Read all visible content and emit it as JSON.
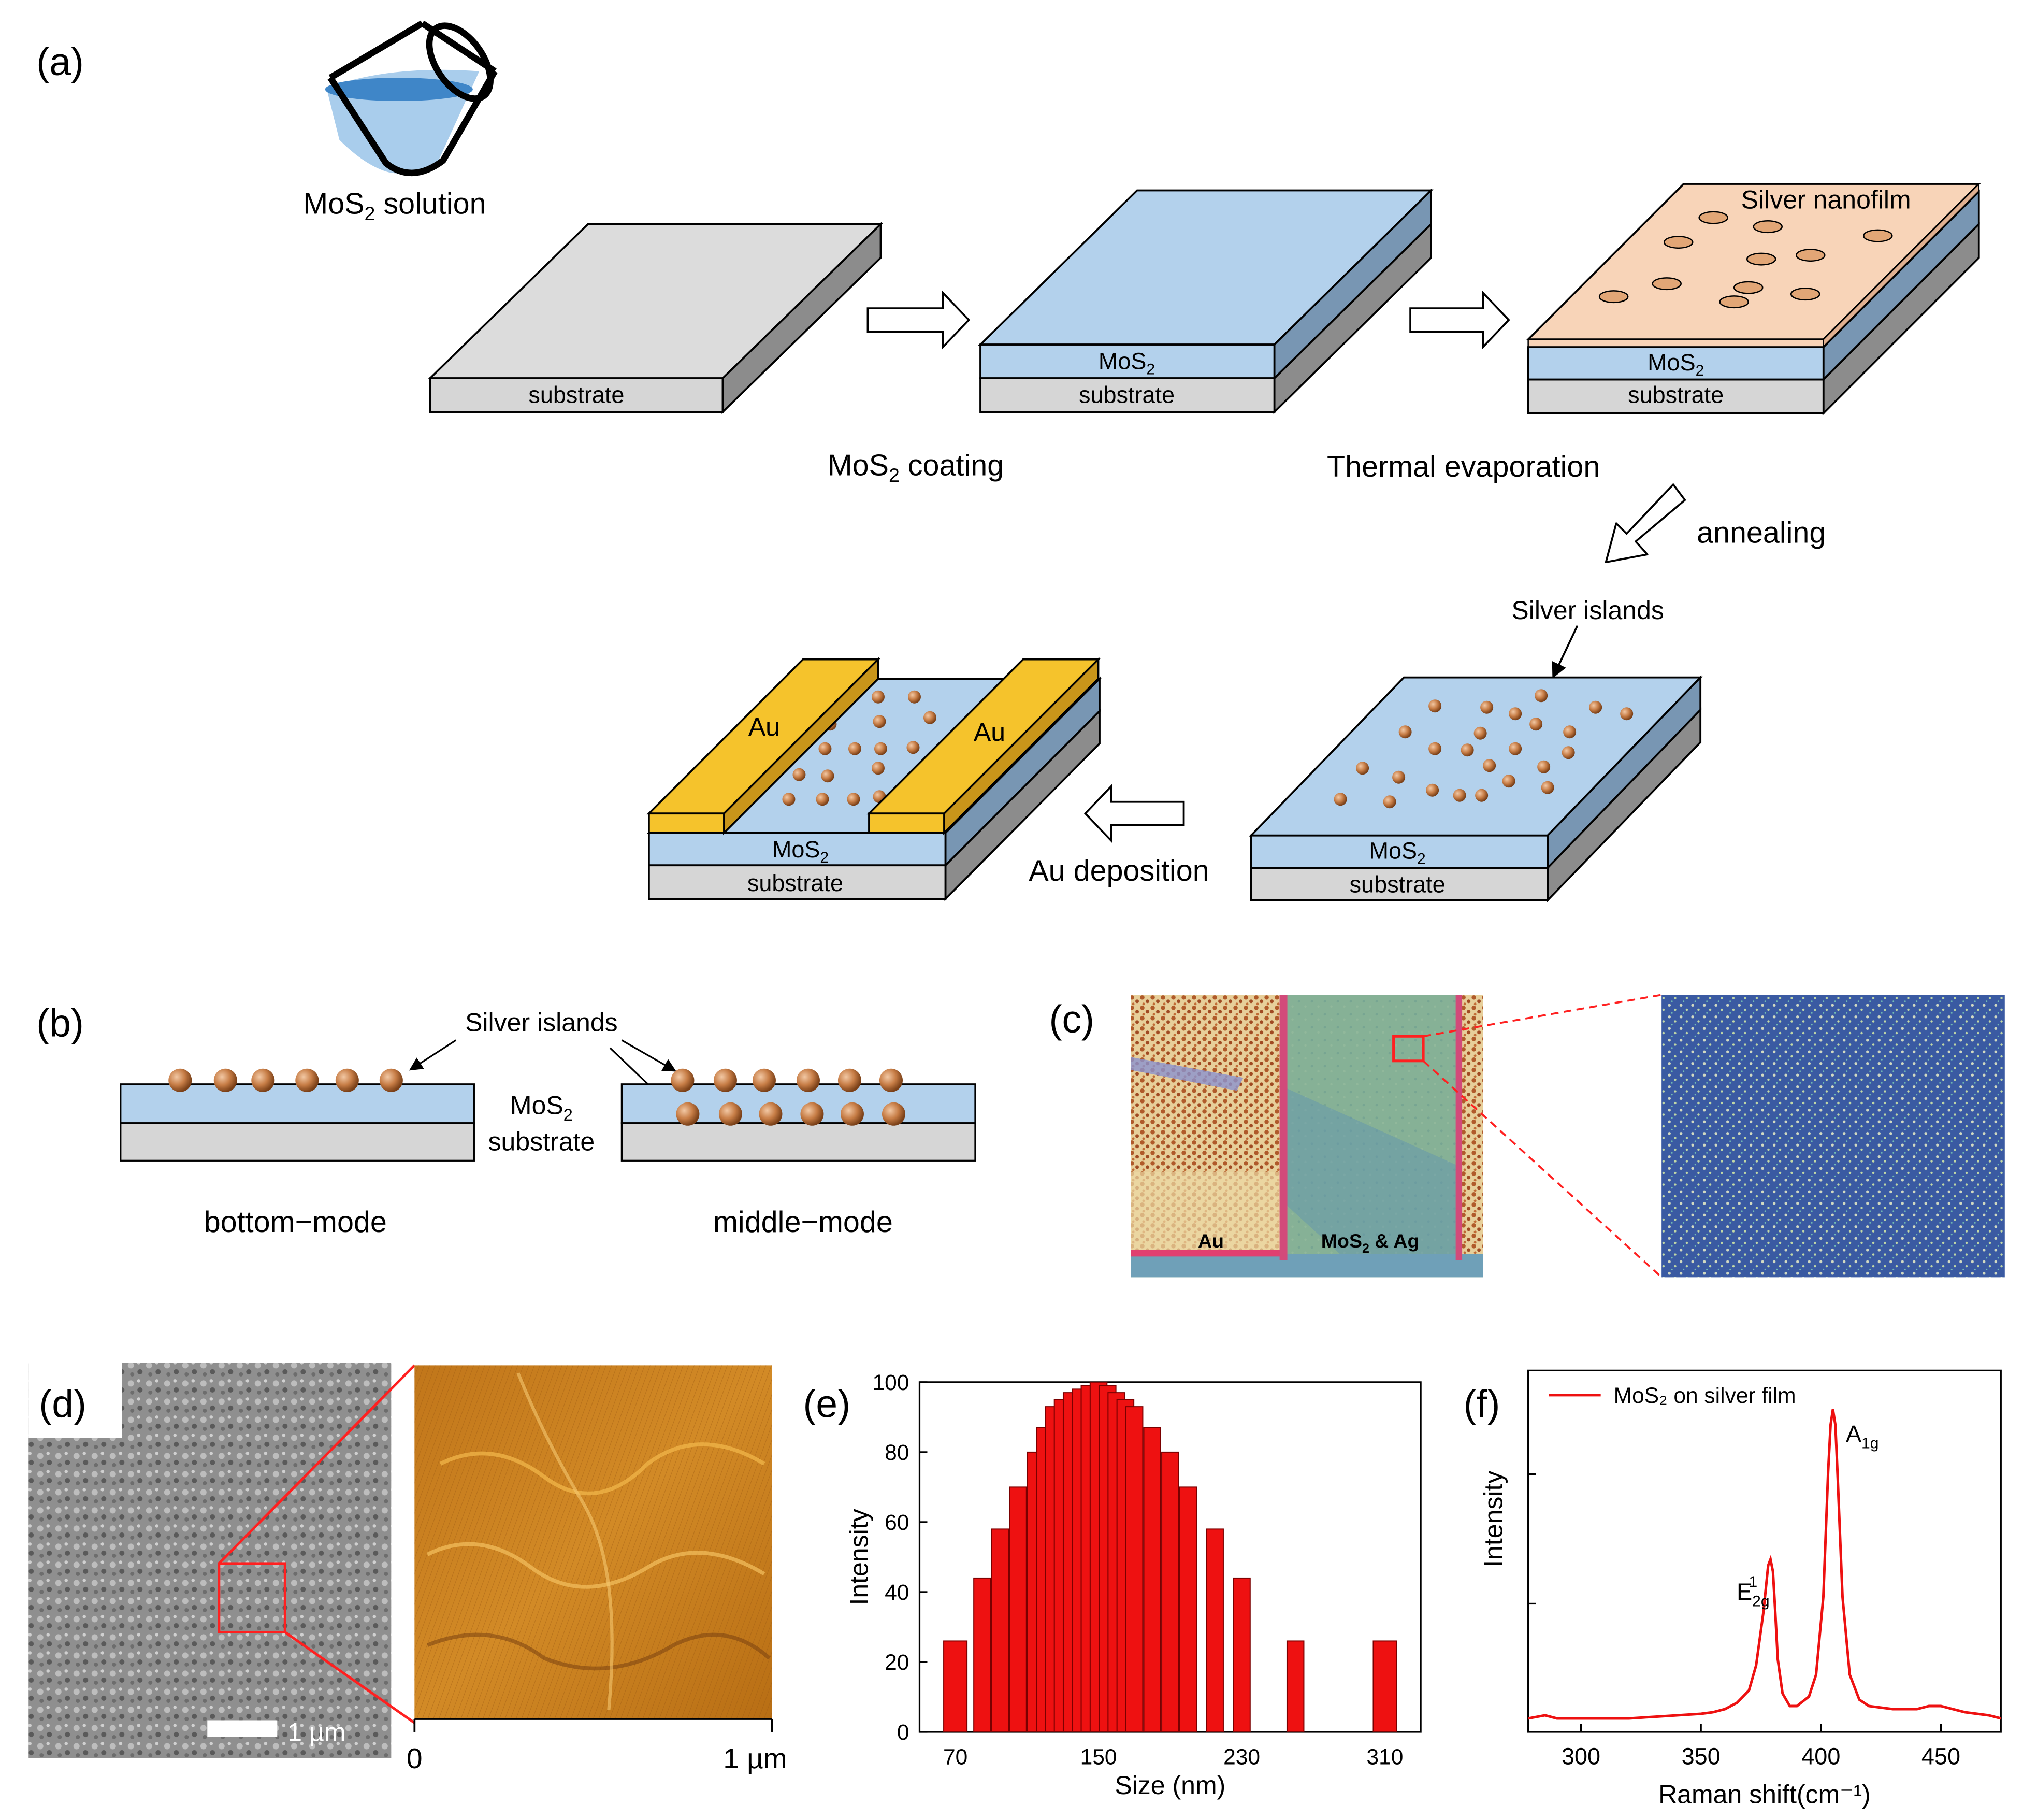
{
  "panels": {
    "a": {
      "label": "(a)",
      "solution_label": "MoS",
      "solution_sub": "2",
      "solution_suffix": " solution",
      "substrate": "substrate",
      "mos2": "MoS",
      "mos2_sub": "2",
      "coating_label": "MoS",
      "coating_sub": "2",
      "coating_suffix": " coating",
      "evaporation_label": "Thermal evaporation",
      "silver_nanofilm": "Silver nanofilm",
      "annealing_label": "annealing",
      "silver_islands": "Silver islands",
      "au": "Au",
      "au_deposition": "Au deposition"
    },
    "b": {
      "label": "(b)",
      "silver_islands": "Silver islands",
      "mos2": "MoS",
      "mos2_sub": "2",
      "substrate": "substrate",
      "bottom_mode": "bottom−mode",
      "middle_mode": "middle−mode"
    },
    "c": {
      "label": "(c)",
      "au": "Au",
      "mos2_ag": "MoS",
      "mos2_ag_sub": "2",
      "mos2_ag_suffix": " & Ag"
    },
    "d": {
      "label": "(d)",
      "scale_bar": "1 µm",
      "afm_axis_start": "0",
      "afm_axis_end": "1 µm"
    },
    "e": {
      "label": "(e)"
    },
    "f": {
      "label": "(f)"
    }
  },
  "colors": {
    "substrate": "#d9d9d9",
    "mos2": "#b3d1ec",
    "silver_film": "#f8d4b8",
    "gold": "#f5c32c",
    "bar_red": "#ee1111",
    "line_red": "#ee1111"
  },
  "chart_data": [
    {
      "type": "bar",
      "panel": "e",
      "xlabel": "Size (nm)",
      "ylabel": "Intensity",
      "xticks": [
        70,
        150,
        230,
        310
      ],
      "ylim": [
        0,
        100
      ],
      "yticks": [
        0,
        20,
        40,
        60,
        80,
        100
      ],
      "x": [
        70,
        85,
        95,
        105,
        115,
        120,
        125,
        130,
        135,
        140,
        145,
        150,
        155,
        160,
        165,
        170,
        180,
        190,
        200,
        215,
        230,
        260,
        310
      ],
      "values": [
        26,
        44,
        58,
        70,
        80,
        87,
        93,
        95,
        97,
        98,
        99,
        100,
        99,
        97,
        95,
        93,
        87,
        80,
        70,
        58,
        44,
        26,
        26
      ]
    },
    {
      "type": "line",
      "panel": "f",
      "xlabel": "Raman shift(cm⁻¹)",
      "ylabel": "Intensity",
      "xticks": [
        300,
        350,
        400,
        450
      ],
      "xlim": [
        278,
        475
      ],
      "legend": "MoS₂ on silver film",
      "legend_placement": "top-left",
      "series": [
        {
          "name": "MoS₂ on silver film",
          "x": [
            278,
            285,
            290,
            300,
            310,
            320,
            330,
            340,
            350,
            355,
            360,
            365,
            370,
            373,
            376,
            378,
            379,
            380,
            381,
            382,
            384,
            387,
            390,
            395,
            398,
            401,
            403,
            404,
            405,
            406,
            407,
            409,
            412,
            416,
            420,
            430,
            440,
            445,
            450,
            455,
            460,
            470,
            475
          ],
          "y": [
            0.01,
            0.02,
            0.01,
            0.01,
            0.01,
            0.01,
            0.015,
            0.02,
            0.025,
            0.03,
            0.04,
            0.06,
            0.1,
            0.18,
            0.35,
            0.5,
            0.52,
            0.48,
            0.35,
            0.2,
            0.09,
            0.05,
            0.05,
            0.08,
            0.15,
            0.4,
            0.8,
            0.95,
            1.0,
            0.95,
            0.78,
            0.4,
            0.15,
            0.07,
            0.05,
            0.04,
            0.04,
            0.05,
            0.05,
            0.04,
            0.03,
            0.02,
            0.01
          ]
        }
      ],
      "peaks": [
        {
          "x": 380,
          "main": "E",
          "sub": "2g",
          "sup": "1"
        },
        {
          "x": 405,
          "main": "A",
          "sub": "1g"
        }
      ]
    }
  ]
}
